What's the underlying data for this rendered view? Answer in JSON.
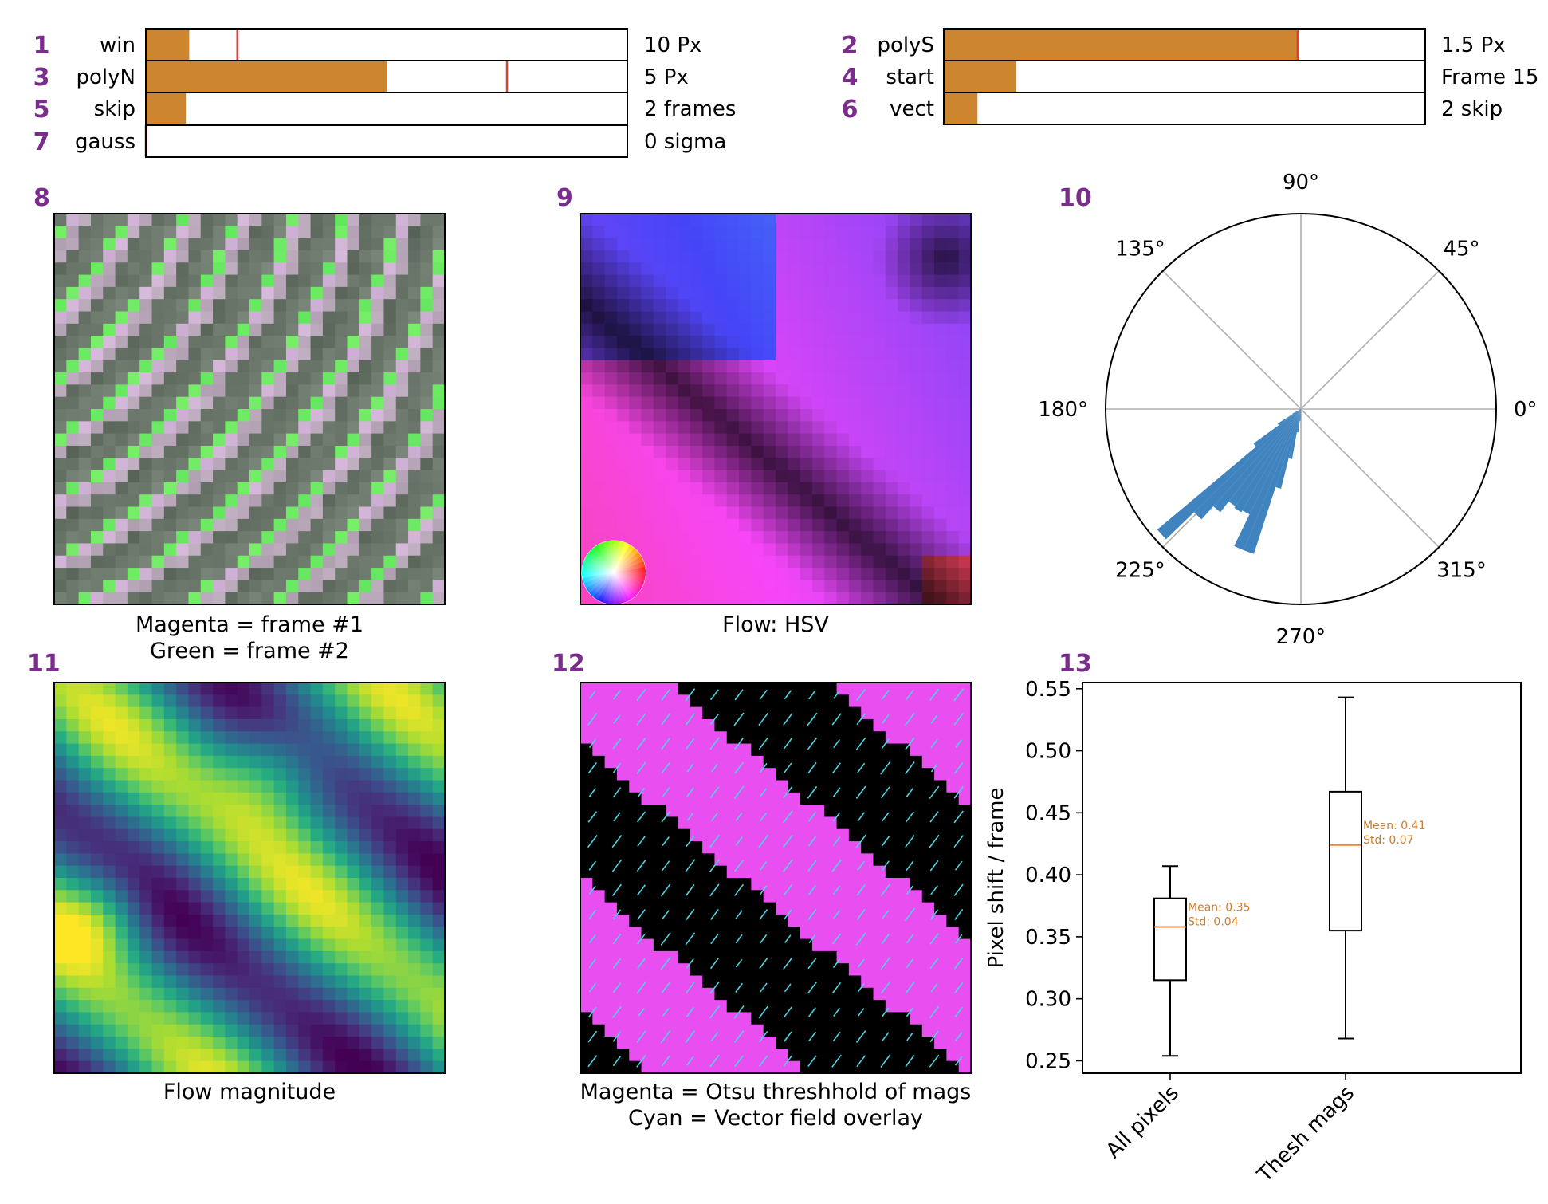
{
  "sliders": [
    {
      "index": "1",
      "name": "win",
      "value_text": "10 Px",
      "fill_fraction": 0.09,
      "marker_fraction": 0.19
    },
    {
      "index": "2",
      "name": "polyS",
      "value_text": "1.5 Px",
      "fill_fraction": 0.735,
      "marker_fraction": 0.735
    },
    {
      "index": "3",
      "name": "polyN",
      "value_text": "5 Px",
      "fill_fraction": 0.5,
      "marker_fraction": 0.75
    },
    {
      "index": "4",
      "name": "start",
      "value_text": "Frame 15",
      "fill_fraction": 0.15,
      "marker_fraction": null
    },
    {
      "index": "5",
      "name": "skip",
      "value_text": "2 frames",
      "fill_fraction": 0.083,
      "marker_fraction": null
    },
    {
      "index": "6",
      "name": "vect",
      "value_text": "2 skip",
      "fill_fraction": 0.07,
      "marker_fraction": null
    },
    {
      "index": "7",
      "name": "gauss",
      "value_text": "0 sigma",
      "fill_fraction": 0.0,
      "marker_fraction": 0.0
    }
  ],
  "colors": {
    "slider_fill": "#cd8530",
    "slider_marker": "#d8403a",
    "panel_number": "#7b2d8e",
    "rose_bar": "#3f83bf",
    "box_median": "#e7863a",
    "box_annotation": "#cd7e2b",
    "magenta": "#e84ef0",
    "cyan": "#4fd3e0"
  },
  "panels": {
    "p8": {
      "index": "8",
      "caption1": "Magenta = frame #1",
      "caption2": "Green = frame #2"
    },
    "p9": {
      "index": "9",
      "caption1": "Flow: HSV"
    },
    "p10": {
      "index": "10"
    },
    "p11": {
      "index": "11",
      "caption1": "Flow magnitude"
    },
    "p12": {
      "index": "12",
      "caption1": "Magenta = Otsu threshhold of mags",
      "caption2": "Cyan = Vector field overlay"
    },
    "p13": {
      "index": "13"
    }
  },
  "chart_data": [
    {
      "type": "polar-histogram",
      "angle_labels": [
        "0°",
        "45°",
        "90°",
        "135°",
        "180°",
        "225°",
        "270°",
        "315°"
      ],
      "bins_deg": [
        {
          "angle": 222,
          "radius": 0.96
        },
        {
          "angle": 226,
          "radius": 0.76
        },
        {
          "angle": 230,
          "radius": 0.67
        },
        {
          "angle": 234,
          "radius": 0.6
        },
        {
          "angle": 238,
          "radius": 0.61
        },
        {
          "angle": 242,
          "radius": 0.6
        },
        {
          "angle": 246,
          "radius": 0.78
        },
        {
          "angle": 250,
          "radius": 0.78
        },
        {
          "angle": 254,
          "radius": 0.42
        },
        {
          "angle": 258,
          "radius": 0.26
        },
        {
          "angle": 262,
          "radius": 0.12
        },
        {
          "angle": 266,
          "radius": 0.06
        },
        {
          "angle": 218,
          "radius": 0.3
        },
        {
          "angle": 214,
          "radius": 0.14
        },
        {
          "angle": 210,
          "radius": 0.05
        }
      ],
      "radius_max": 1.0
    },
    {
      "type": "box",
      "ylabel": "Pixel shift / frame",
      "ylim": [
        0.24,
        0.555
      ],
      "yticks": [
        "0.25",
        "0.30",
        "0.35",
        "0.40",
        "0.45",
        "0.50",
        "0.55"
      ],
      "ytick_values": [
        0.25,
        0.3,
        0.35,
        0.4,
        0.45,
        0.5,
        0.55
      ],
      "categories": [
        "All pixels",
        "Thesh mags"
      ],
      "boxes": [
        {
          "whisker_low": 0.254,
          "q1": 0.315,
          "median": 0.358,
          "q3": 0.381,
          "whisker_high": 0.407,
          "mean_text": "Mean: 0.35",
          "std_text": "Std: 0.04"
        },
        {
          "whisker_low": 0.268,
          "q1": 0.355,
          "median": 0.424,
          "q3": 0.467,
          "whisker_high": 0.543,
          "mean_text": "Mean: 0.41",
          "std_text": "Std: 0.07"
        }
      ]
    }
  ]
}
